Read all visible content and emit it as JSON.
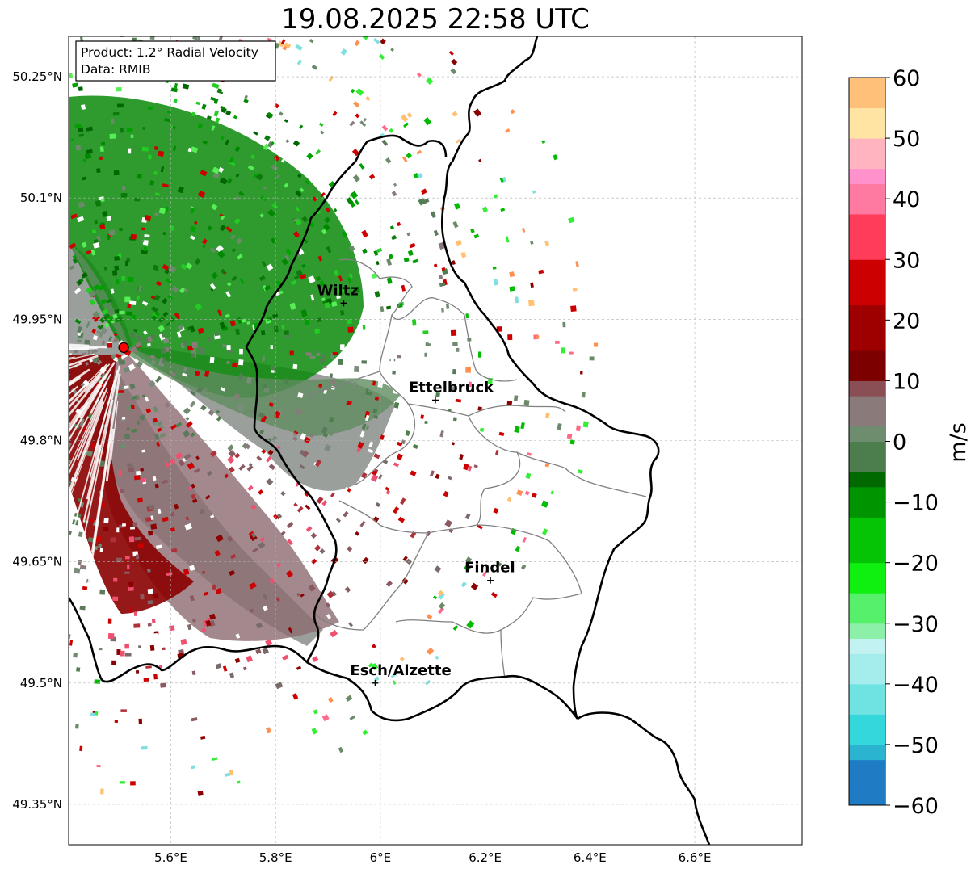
{
  "title": "19.08.2025 22:58 UTC",
  "info": {
    "product": "Product: 1.2° Radial Velocity",
    "source": "Data: RMIB"
  },
  "map": {
    "extent": {
      "lon_min": 5.405,
      "lon_max": 6.805,
      "lat_min": 49.3,
      "lat_max": 50.3
    },
    "x_ticks": [
      {
        "value": 5.6,
        "label": "5.6°E"
      },
      {
        "value": 5.8,
        "label": "5.8°E"
      },
      {
        "value": 6.0,
        "label": "6°E"
      },
      {
        "value": 6.2,
        "label": "6.2°E"
      },
      {
        "value": 6.4,
        "label": "6.4°E"
      },
      {
        "value": 6.6,
        "label": "6.6°E"
      }
    ],
    "y_ticks": [
      {
        "value": 50.25,
        "label": "50.25°N"
      },
      {
        "value": 50.1,
        "label": "50.1°N"
      },
      {
        "value": 49.95,
        "label": "49.95°N"
      },
      {
        "value": 49.8,
        "label": "49.8°N"
      },
      {
        "value": 49.65,
        "label": "49.65°N"
      },
      {
        "value": 49.5,
        "label": "49.5°N"
      },
      {
        "value": 49.35,
        "label": "49.35°N"
      }
    ],
    "radar": {
      "lon": 5.51,
      "lat": 49.915
    },
    "cities": [
      {
        "name": "Wiltz",
        "lon": 5.93,
        "lat": 49.97
      },
      {
        "name": "Ettelbruck",
        "lon": 6.105,
        "lat": 49.85
      },
      {
        "name": "Findel",
        "lon": 6.21,
        "lat": 49.627
      },
      {
        "name": "Esch/Alzette",
        "lon": 5.99,
        "lat": 49.5
      }
    ]
  },
  "colorbar": {
    "min": -60,
    "max": 60,
    "unit": "m/s",
    "ticks": [
      {
        "value": 60,
        "label": "60"
      },
      {
        "value": 50,
        "label": "50"
      },
      {
        "value": 40,
        "label": "40"
      },
      {
        "value": 30,
        "label": "30"
      },
      {
        "value": 20,
        "label": "20"
      },
      {
        "value": 10,
        "label": "10"
      },
      {
        "value": 0,
        "label": "0"
      },
      {
        "value": -10,
        "label": "−10"
      },
      {
        "value": -20,
        "label": "−20"
      },
      {
        "value": -30,
        "label": "−30"
      },
      {
        "value": -40,
        "label": "−40"
      },
      {
        "value": -50,
        "label": "−50"
      },
      {
        "value": -60,
        "label": "−60"
      }
    ],
    "stops": [
      {
        "v": -60,
        "color": "#1f7bc4"
      },
      {
        "v": -54,
        "color": "#2ab4cf"
      },
      {
        "v": -50,
        "color": "#34d8dc"
      },
      {
        "v": -45,
        "color": "#6fe2e2"
      },
      {
        "v": -40,
        "color": "#a5ecec"
      },
      {
        "v": -36,
        "color": "#c2f2f2"
      },
      {
        "v": -34,
        "color": "#8df0a8"
      },
      {
        "v": -31,
        "color": "#57f06a"
      },
      {
        "v": -27,
        "color": "#10f010"
      },
      {
        "v": -20,
        "color": "#05c405"
      },
      {
        "v": -14,
        "color": "#009400"
      },
      {
        "v": -8,
        "color": "#006a00"
      },
      {
        "v": -6,
        "color": "#4c7d4c"
      },
      {
        "v": -2,
        "color": "#6e8d6e"
      },
      {
        "v": 2,
        "color": "#8a7a7a"
      },
      {
        "v": 6,
        "color": "#8a4f55"
      },
      {
        "v": 8,
        "color": "#7d0000"
      },
      {
        "v": 14,
        "color": "#9e0000"
      },
      {
        "v": 21,
        "color": "#cc0000"
      },
      {
        "v": 28,
        "color": "#f20000"
      },
      {
        "v": 30,
        "color": "#ff3c5a"
      },
      {
        "v": 36,
        "color": "#ff7aa0"
      },
      {
        "v": 41,
        "color": "#ff92cc"
      },
      {
        "v": 44,
        "color": "#ffb4c0"
      },
      {
        "v": 48,
        "color": "#ffe4a4"
      },
      {
        "v": 54,
        "color": "#ffc07a"
      },
      {
        "v": 60,
        "color": "#ffa25c"
      }
    ]
  },
  "legend_colors": {
    "radar_marker": "#ff0000",
    "border": "#000000",
    "district_lines": "#808080",
    "grid": "#b0b0b0"
  }
}
